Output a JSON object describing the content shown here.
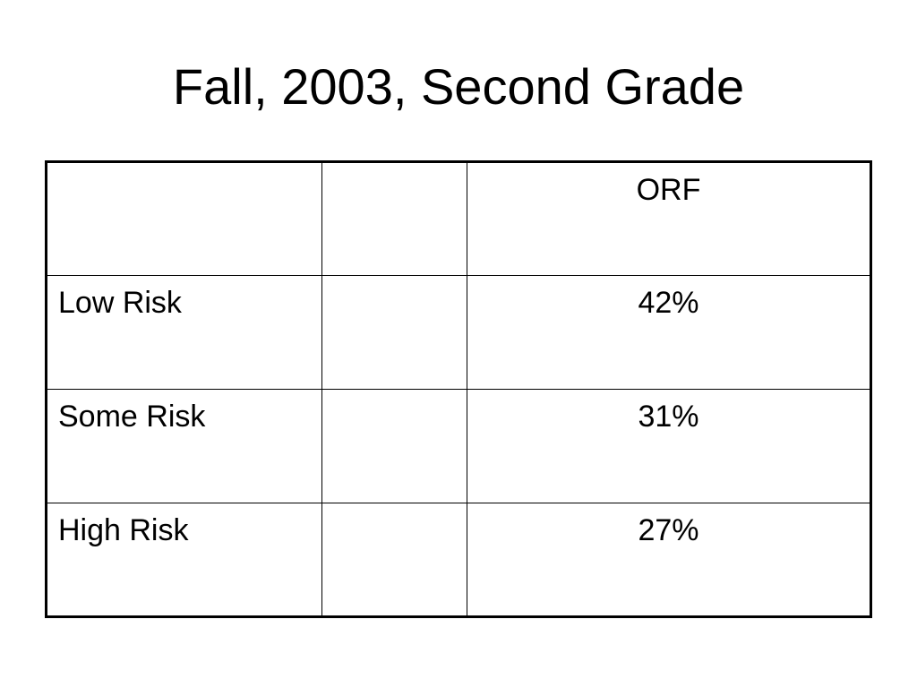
{
  "title": "Fall, 2003, Second Grade",
  "table": {
    "header": "ORF",
    "rows": [
      {
        "label": "Low Risk",
        "value": "42%"
      },
      {
        "label": "Some Risk",
        "value": "31%"
      },
      {
        "label": "High Risk",
        "value": "27%"
      }
    ]
  }
}
